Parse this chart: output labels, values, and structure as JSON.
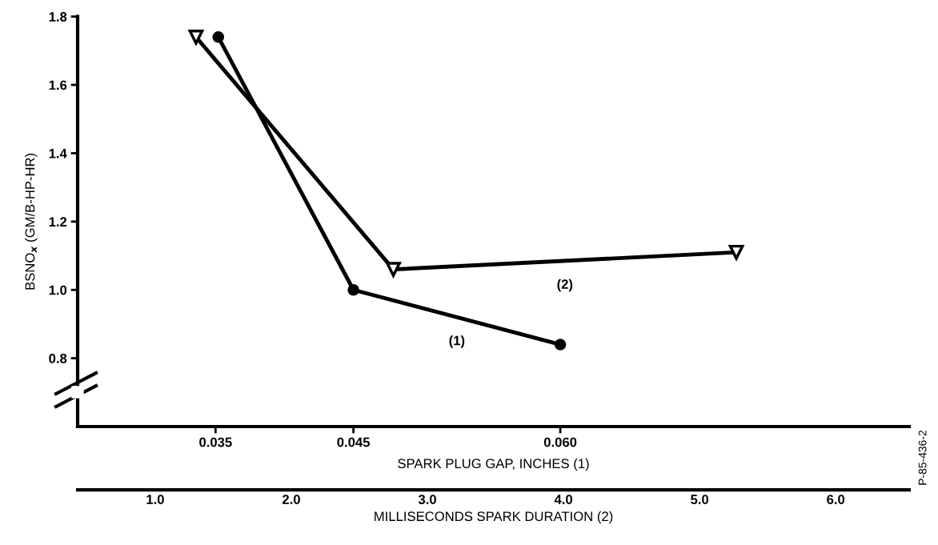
{
  "chart_data": {
    "type": "line",
    "xlabel": "SPARK PLUG GAP, INCHES (1)",
    "x2label": "MILLISECONDS SPARK DURATION (2)",
    "ylabel": "BSNO$_{x}$ (GM/B-HP-HR)",
    "xlim": [
      0.025,
      0.0853
    ],
    "xticks": [
      {
        "value": 0.035,
        "label": "0.035"
      },
      {
        "value": 0.045,
        "label": "0.045"
      },
      {
        "value": 0.06,
        "label": "0.060"
      }
    ],
    "x2lim": [
      0.43,
      6.54
    ],
    "x2ticks": [
      {
        "value": 1,
        "label": "1.0"
      },
      {
        "value": 2,
        "label": "2.0"
      },
      {
        "value": 3,
        "label": "3.0"
      },
      {
        "value": 4,
        "label": "4.0"
      },
      {
        "value": 5,
        "label": "5.0"
      },
      {
        "value": 6,
        "label": "6.0"
      }
    ],
    "ylim": [
      0.6,
      1.8
    ],
    "yticks": [
      {
        "value": 0.8,
        "label": "0.8"
      },
      {
        "value": 1.0,
        "label": "1.0"
      },
      {
        "value": 1.2,
        "label": "1.2"
      },
      {
        "value": 1.4,
        "label": "1.4"
      },
      {
        "value": 1.6,
        "label": "1.6"
      },
      {
        "value": 1.8,
        "label": "1.8"
      }
    ],
    "series": [
      {
        "color": "#000000",
        "marker": "circle",
        "x": [
          0.0352,
          0.045,
          0.06
        ],
        "values": [
          1.74,
          1.0,
          0.84
        ]
      },
      {
        "color": "#000000",
        "marker": "triangle",
        "axis": "x2",
        "x": [
          1.3,
          2.75,
          5.27
        ],
        "values": [
          1.74,
          1.06,
          1.11
        ]
      }
    ],
    "annotations": [
      "(1)",
      "(2)",
      "P-85-436-2"
    ],
    "grid": false,
    "line_style": "solid"
  }
}
